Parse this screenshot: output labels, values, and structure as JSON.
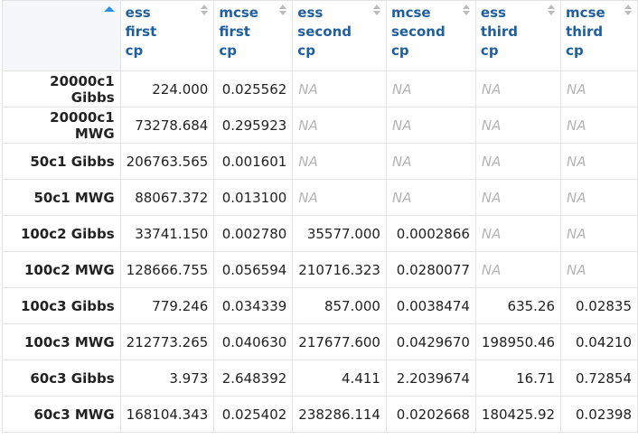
{
  "headers": [
    [
      "ess",
      "first",
      "cp"
    ],
    [
      "mcse",
      "first",
      "cp"
    ],
    [
      "ess",
      "second",
      "cp"
    ],
    [
      "mcse",
      "second",
      "cp"
    ],
    [
      "ess",
      "third",
      "cp"
    ],
    [
      "mcse",
      "third",
      "cp"
    ]
  ],
  "rows": [
    {
      "label": "20000c1 Gibbs",
      "cells": [
        "224.000",
        "0.025562",
        "NA",
        "NA",
        "NA",
        "NA"
      ]
    },
    {
      "label": "20000c1 MWG",
      "cells": [
        "73278.684",
        "0.295923",
        "NA",
        "NA",
        "NA",
        "NA"
      ]
    },
    {
      "label": "50c1 Gibbs",
      "cells": [
        "206763.565",
        "0.001601",
        "NA",
        "NA",
        "NA",
        "NA"
      ]
    },
    {
      "label": "50c1 MWG",
      "cells": [
        "88067.372",
        "0.013100",
        "NA",
        "NA",
        "NA",
        "NA"
      ]
    },
    {
      "label": "100c2 Gibbs",
      "cells": [
        "33741.150",
        "0.002780",
        "35577.000",
        "0.0002866",
        "NA",
        "NA"
      ]
    },
    {
      "label": "100c2 MWG",
      "cells": [
        "128666.755",
        "0.056594",
        "210716.323",
        "0.0280077",
        "NA",
        "NA"
      ]
    },
    {
      "label": "100c3 Gibbs",
      "cells": [
        "779.246",
        "0.034339",
        "857.000",
        "0.0038474",
        "635.26",
        "0.02835"
      ]
    },
    {
      "label": "100c3 MWG",
      "cells": [
        "212773.265",
        "0.040630",
        "217677.600",
        "0.0429670",
        "198950.46",
        "0.04210"
      ]
    },
    {
      "label": "60c3 Gibbs",
      "cells": [
        "3.973",
        "2.648392",
        "4.411",
        "2.2039674",
        "16.71",
        "0.72854"
      ]
    },
    {
      "label": "60c3 MWG",
      "cells": [
        "168104.343",
        "0.025402",
        "238286.114",
        "0.0202668",
        "180425.92",
        "0.02398"
      ]
    }
  ]
}
